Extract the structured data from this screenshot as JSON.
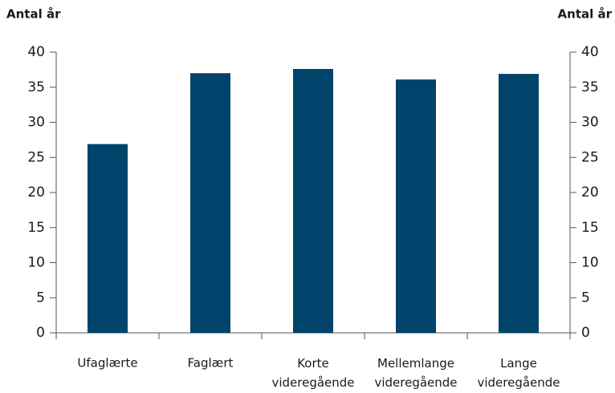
{
  "chart_data": {
    "type": "bar",
    "ylabel": "Antal år",
    "y2label": "Antal år",
    "categories": [
      "Ufaglærte",
      "Faglært",
      "Korte videregående",
      "Mellemlange videregående",
      "Lange videregående"
    ],
    "values": [
      26.9,
      37.0,
      37.6,
      36.1,
      36.9
    ],
    "color": "#00436b",
    "ylim": [
      0,
      40
    ],
    "yticks": [
      0,
      5,
      10,
      15,
      20,
      25,
      30,
      35,
      40
    ],
    "y2lim": [
      0,
      40
    ],
    "y2ticks": [
      0,
      5,
      10,
      15,
      20,
      25,
      30,
      35,
      40
    ],
    "grid": false
  }
}
